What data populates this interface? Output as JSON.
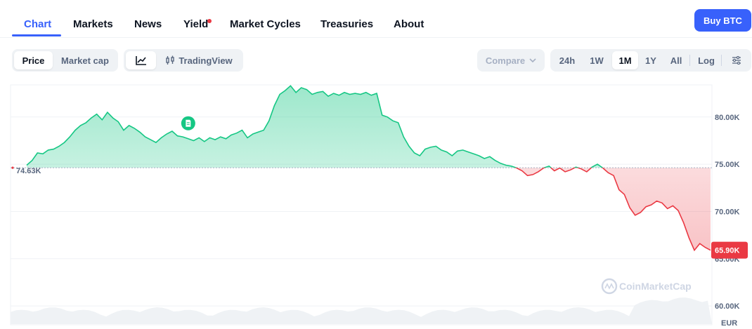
{
  "nav": {
    "tabs": [
      {
        "label": "Chart",
        "active": true
      },
      {
        "label": "Markets"
      },
      {
        "label": "News"
      },
      {
        "label": "Yield"
      },
      {
        "label": "Market Cycles"
      },
      {
        "label": "Treasuries"
      },
      {
        "label": "About"
      }
    ],
    "buy_label": "Buy BTC"
  },
  "toolbar": {
    "metric": [
      "Price",
      "Market cap"
    ],
    "tradingview_label": "TradingView",
    "compare_label": "Compare",
    "ranges": [
      "24h",
      "1W",
      "1M",
      "1Y",
      "All"
    ],
    "active_range": "1M",
    "log_label": "Log"
  },
  "colors": {
    "accent": "#3861fb",
    "up": "#16c784",
    "down": "#ea3943"
  },
  "chart_data": {
    "type": "line",
    "currency": "EUR",
    "watermark": "CoinMarketCap",
    "baseline": 74.63,
    "baseline_label": "74.63K",
    "last_value": 65.9,
    "last_label": "65.90K",
    "y_ticks": [
      "80.00K",
      "75.00K",
      "70.00K",
      "65.00K",
      "60.00K"
    ],
    "ylim": [
      58.3,
      83.4
    ],
    "events": [
      30,
      162
    ],
    "series": [
      {
        "values": [
          74.9,
          75.4,
          76.2,
          76.1,
          76.5,
          76.6,
          76.9,
          77.3,
          77.9,
          78.6,
          79.1,
          79.4,
          79.9,
          80.3,
          79.7,
          80.5,
          79.9,
          79.5,
          78.6,
          79.1,
          78.8,
          78.4,
          77.9,
          77.6,
          77.3,
          77.8,
          78.2,
          78.5,
          78.0,
          77.9,
          77.7,
          77.5,
          77.8,
          77.4,
          77.8,
          77.6,
          77.9,
          77.7,
          78.1,
          78.3,
          78.6,
          77.8,
          78.2,
          78.4,
          78.6,
          79.6,
          81.2,
          82.4,
          82.8,
          83.3,
          82.6,
          83.1,
          82.9,
          82.4,
          82.6,
          82.7,
          82.2,
          82.5,
          82.3,
          82.6,
          82.4,
          82.5,
          82.4,
          82.6,
          82.3,
          82.5,
          80.2,
          80.0,
          79.6,
          79.4,
          77.9,
          76.9,
          76.2,
          75.9,
          76.6,
          76.8,
          76.9,
          76.5,
          76.3,
          75.9,
          76.4,
          76.5,
          76.3,
          76.1,
          75.9,
          75.6,
          75.8,
          75.4,
          75.1,
          74.9,
          74.8,
          74.6,
          74.3,
          73.8,
          73.9,
          74.2,
          74.6,
          74.8,
          74.3,
          74.6,
          74.2,
          74.4,
          74.7,
          74.5,
          74.2,
          74.7,
          75.0,
          74.6,
          74.1,
          73.8,
          72.3,
          71.8,
          70.4,
          69.6,
          69.9,
          70.5,
          70.7,
          71.1,
          70.9,
          70.3,
          70.6,
          70.1,
          68.8,
          67.2,
          65.9,
          66.6,
          66.2,
          65.9
        ]
      }
    ]
  }
}
